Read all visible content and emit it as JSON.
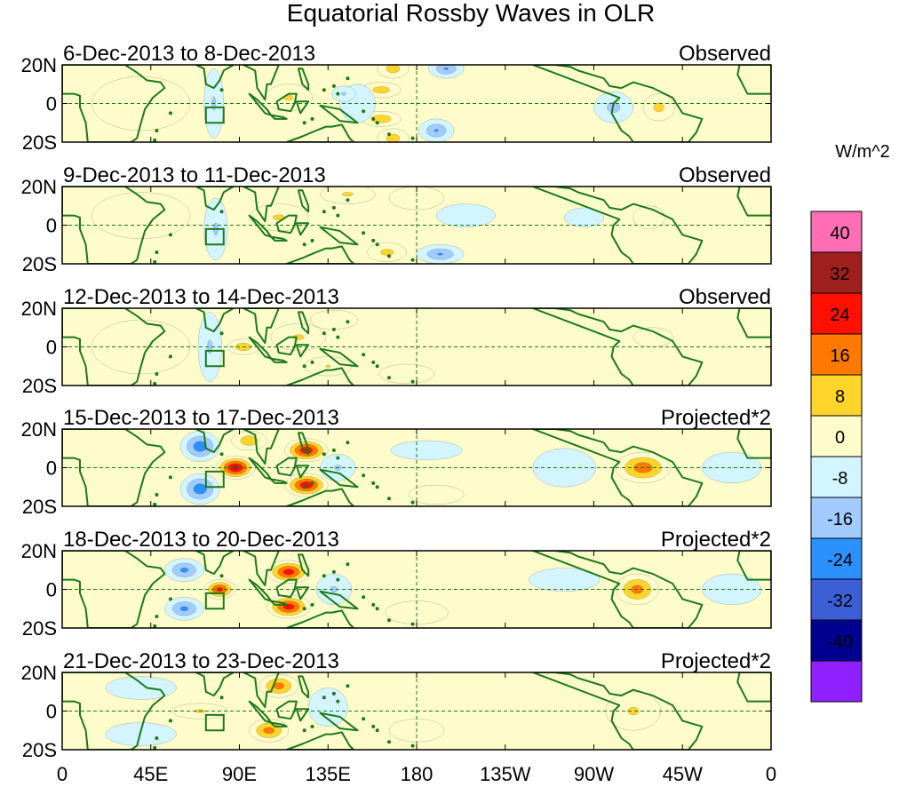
{
  "chart_data": {
    "type": "heatmap",
    "title": "Equatorial Rossby Waves in OLR",
    "x_ticks": [
      "0",
      "45E",
      "90E",
      "135E",
      "180",
      "135W",
      "90W",
      "45W",
      "0"
    ],
    "x_tick_values": [
      0,
      45,
      90,
      135,
      180,
      225,
      270,
      315,
      360
    ],
    "y_ticks": [
      "20N",
      "0",
      "20S"
    ],
    "y_tick_values": [
      20,
      0,
      -20
    ],
    "xlim": [
      0,
      360
    ],
    "ylim": [
      -20,
      20
    ],
    "colorbar": {
      "units": "W/m^2",
      "tick_labels": [
        "40",
        "32",
        "24",
        "16",
        "8",
        "0",
        "-8",
        "-16",
        "-24",
        "-32",
        "-40"
      ],
      "tick_values": [
        40,
        32,
        24,
        16,
        8,
        0,
        -8,
        -16,
        -24,
        -32,
        -40
      ],
      "colors": [
        "#ff6eb4",
        "#a0201e",
        "#ff1000",
        "#ff7800",
        "#ffd52c",
        "#fffccb",
        "#d2f5ff",
        "#a2ccff",
        "#2d90ff",
        "#3c5fd8",
        "#000090",
        "#9020ff"
      ]
    },
    "panels": [
      {
        "date_range": "6-Dec-2013 to 8-Dec-2013",
        "type_label": "Observed",
        "anomalies": [
          {
            "lon": 168,
            "lat": 18,
            "value": 14,
            "rlon": 8,
            "rlat": 5
          },
          {
            "lon": 195,
            "lat": 18,
            "value": -18,
            "rlon": 9,
            "rlat": 5
          },
          {
            "lon": 162,
            "lat": 7,
            "value": 14,
            "rlon": 10,
            "rlat": 4
          },
          {
            "lon": 162,
            "lat": -8,
            "value": 16,
            "rlon": 10,
            "rlat": 4
          },
          {
            "lon": 168,
            "lat": -18,
            "value": 14,
            "rlon": 8,
            "rlat": 5
          },
          {
            "lon": 190,
            "lat": -14,
            "value": -18,
            "rlon": 9,
            "rlat": 6
          },
          {
            "lon": 150,
            "lat": 0,
            "value": -8,
            "rlon": 9,
            "rlat": 10
          },
          {
            "lon": 143,
            "lat": 5,
            "value": -10,
            "rlon": 6,
            "rlat": 4
          },
          {
            "lon": 115,
            "lat": 3,
            "value": 10,
            "rlon": 12,
            "rlat": 7
          },
          {
            "lon": 77,
            "lat": 0,
            "value": -10,
            "rlon": 5,
            "rlat": 18
          },
          {
            "lon": 280,
            "lat": -2,
            "value": -12,
            "rlon": 10,
            "rlat": 8
          },
          {
            "lon": 303,
            "lat": -2,
            "value": 12,
            "rlon": 8,
            "rlat": 7
          },
          {
            "lon": 40,
            "lat": 0,
            "value": 4,
            "rlon": 25,
            "rlat": 14
          }
        ]
      },
      {
        "date_range": "9-Dec-2013 to 11-Dec-2013",
        "type_label": "Observed",
        "anomalies": [
          {
            "lon": 145,
            "lat": 16,
            "value": 10,
            "rlon": 14,
            "rlat": 5
          },
          {
            "lon": 180,
            "lat": 14,
            "value": 5,
            "rlon": 14,
            "rlat": 6
          },
          {
            "lon": 192,
            "lat": -15,
            "value": -18,
            "rlon": 12,
            "rlat": 5
          },
          {
            "lon": 165,
            "lat": -14,
            "value": 12,
            "rlon": 10,
            "rlat": 5
          },
          {
            "lon": 110,
            "lat": 4,
            "value": 10,
            "rlon": 15,
            "rlat": 7
          },
          {
            "lon": 78,
            "lat": -2,
            "value": -10,
            "rlon": 6,
            "rlat": 16
          },
          {
            "lon": 205,
            "lat": 5,
            "value": -6,
            "rlon": 15,
            "rlat": 6
          },
          {
            "lon": 265,
            "lat": 4,
            "value": -8,
            "rlon": 10,
            "rlat": 5
          },
          {
            "lon": 298,
            "lat": 4,
            "value": 8,
            "rlon": 8,
            "rlat": 6
          },
          {
            "lon": 40,
            "lat": 5,
            "value": 4,
            "rlon": 25,
            "rlat": 12
          }
        ]
      },
      {
        "date_range": "12-Dec-2013 to 14-Dec-2013",
        "type_label": "Observed",
        "anomalies": [
          {
            "lon": 92,
            "lat": 0,
            "value": 16,
            "rlon": 8,
            "rlat": 4
          },
          {
            "lon": 120,
            "lat": 5,
            "value": 10,
            "rlon": 14,
            "rlat": 7
          },
          {
            "lon": 138,
            "lat": 14,
            "value": 8,
            "rlon": 12,
            "rlat": 5
          },
          {
            "lon": 135,
            "lat": -10,
            "value": 9,
            "rlon": 12,
            "rlat": 5
          },
          {
            "lon": 75,
            "lat": 0,
            "value": -10,
            "rlon": 6,
            "rlat": 18
          },
          {
            "lon": 175,
            "lat": -14,
            "value": 5,
            "rlon": 14,
            "rlat": 5
          },
          {
            "lon": 300,
            "lat": 5,
            "value": 8,
            "rlon": 10,
            "rlat": 5
          },
          {
            "lon": 40,
            "lat": 0,
            "value": 4,
            "rlon": 25,
            "rlat": 14
          }
        ]
      },
      {
        "date_range": "15-Dec-2013 to 17-Dec-2013",
        "type_label": "Projected*2",
        "anomalies": [
          {
            "lon": 70,
            "lat": 11,
            "value": -24,
            "rlon": 10,
            "rlat": 8
          },
          {
            "lon": 70,
            "lat": -11,
            "value": -24,
            "rlon": 10,
            "rlat": 8
          },
          {
            "lon": 88,
            "lat": 0,
            "value": 38,
            "rlon": 10,
            "rlat": 6
          },
          {
            "lon": 95,
            "lat": 14,
            "value": 16,
            "rlon": 9,
            "rlat": 5
          },
          {
            "lon": 124,
            "lat": 9,
            "value": 34,
            "rlon": 11,
            "rlat": 6
          },
          {
            "lon": 124,
            "lat": -9,
            "value": 34,
            "rlon": 11,
            "rlat": 6
          },
          {
            "lon": 140,
            "lat": 0,
            "value": -10,
            "rlon": 9,
            "rlat": 7
          },
          {
            "lon": 295,
            "lat": 0,
            "value": 24,
            "rlon": 14,
            "rlat": 8
          },
          {
            "lon": 255,
            "lat": 0,
            "value": -6,
            "rlon": 16,
            "rlat": 10
          },
          {
            "lon": 340,
            "lat": 0,
            "value": -8,
            "rlon": 15,
            "rlat": 8
          },
          {
            "lon": 185,
            "lat": 9,
            "value": -8,
            "rlon": 18,
            "rlat": 5
          },
          {
            "lon": 190,
            "lat": -14,
            "value": 8,
            "rlon": 14,
            "rlat": 5
          }
        ]
      },
      {
        "date_range": "18-Dec-2013 to 20-Dec-2013",
        "type_label": "Projected*2",
        "anomalies": [
          {
            "lon": 62,
            "lat": 10,
            "value": -20,
            "rlon": 10,
            "rlat": 6
          },
          {
            "lon": 62,
            "lat": -10,
            "value": -20,
            "rlon": 10,
            "rlat": 6
          },
          {
            "lon": 80,
            "lat": 0,
            "value": 30,
            "rlon": 8,
            "rlat": 5
          },
          {
            "lon": 115,
            "lat": 9,
            "value": 32,
            "rlon": 11,
            "rlat": 6
          },
          {
            "lon": 115,
            "lat": -9,
            "value": 32,
            "rlon": 11,
            "rlat": 6
          },
          {
            "lon": 138,
            "lat": 0,
            "value": -10,
            "rlon": 9,
            "rlat": 8
          },
          {
            "lon": 292,
            "lat": 0,
            "value": 22,
            "rlon": 11,
            "rlat": 8
          },
          {
            "lon": 255,
            "lat": 5,
            "value": -6,
            "rlon": 18,
            "rlat": 6
          },
          {
            "lon": 340,
            "lat": 0,
            "value": -7,
            "rlon": 15,
            "rlat": 8
          },
          {
            "lon": 180,
            "lat": -12,
            "value": 6,
            "rlon": 16,
            "rlat": 6
          }
        ]
      },
      {
        "date_range": "21-Dec-2013 to 23-Dec-2013",
        "type_label": "Projected*2",
        "anomalies": [
          {
            "lon": 110,
            "lat": 13,
            "value": 22,
            "rlon": 10,
            "rlat": 6
          },
          {
            "lon": 105,
            "lat": -10,
            "value": 22,
            "rlon": 10,
            "rlat": 6
          },
          {
            "lon": 70,
            "lat": 0,
            "value": 10,
            "rlon": 14,
            "rlat": 4
          },
          {
            "lon": 40,
            "lat": 12,
            "value": -8,
            "rlon": 18,
            "rlat": 6
          },
          {
            "lon": 40,
            "lat": -12,
            "value": -8,
            "rlon": 18,
            "rlat": 6
          },
          {
            "lon": 135,
            "lat": 2,
            "value": -8,
            "rlon": 10,
            "rlat": 10
          },
          {
            "lon": 180,
            "lat": -10,
            "value": 8,
            "rlon": 14,
            "rlat": 6
          },
          {
            "lon": 290,
            "lat": 0,
            "value": 10,
            "rlon": 14,
            "rlat": 10
          }
        ]
      }
    ]
  }
}
